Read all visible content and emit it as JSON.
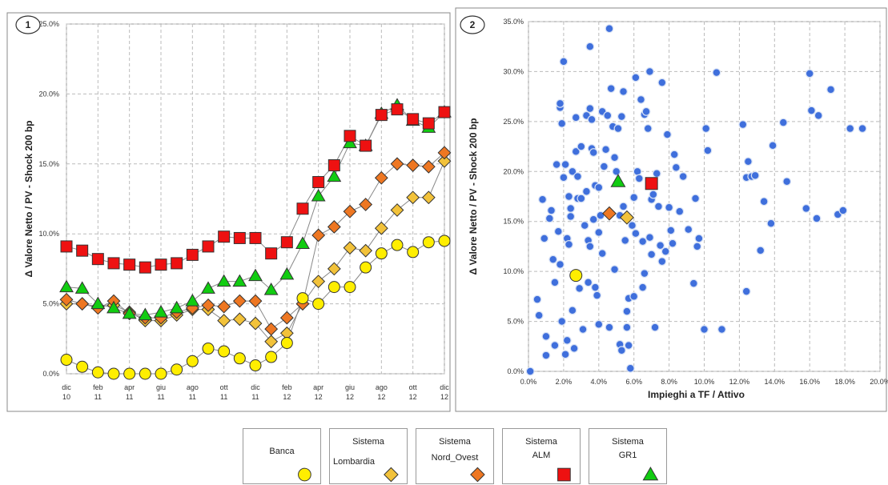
{
  "chart_data": [
    {
      "type": "line",
      "panel_number": "1",
      "ylabel": "Δ Valore Netto / PV - Shock 200 bp",
      "xlabel": "",
      "ylim": [
        0,
        25
      ],
      "y_ticks": [
        "0.0%",
        "5.0%",
        "10.0%",
        "15.0%",
        "20.0%",
        "25.0%"
      ],
      "x_tick_labels": [
        [
          "dic",
          "10"
        ],
        [
          "feb",
          "11"
        ],
        [
          "apr",
          "11"
        ],
        [
          "giu",
          "11"
        ],
        [
          "ago",
          "11"
        ],
        [
          "ott",
          "11"
        ],
        [
          "dic",
          "11"
        ],
        [
          "feb",
          "12"
        ],
        [
          "apr",
          "12"
        ],
        [
          "giu",
          "12"
        ],
        [
          "ago",
          "12"
        ],
        [
          "ott",
          "12"
        ],
        [
          "dic",
          "12"
        ]
      ],
      "categories": [
        "dic 10",
        "gen 11",
        "feb 11",
        "mar 11",
        "apr 11",
        "mag 11",
        "giu 11",
        "lug 11",
        "ago 11",
        "set 11",
        "ott 11",
        "nov 11",
        "dic 11",
        "gen 12",
        "feb 12",
        "mar 12",
        "apr 12",
        "mag 12",
        "giu 12",
        "lug 12",
        "ago 12",
        "set 12",
        "ott 12",
        "nov 12",
        "dic 12"
      ],
      "grid": true,
      "series": [
        {
          "key": "banca",
          "marker": "circle",
          "color": "#ffee00",
          "values": [
            1.0,
            0.5,
            0.1,
            0.0,
            0.0,
            0.0,
            0.0,
            0.3,
            0.9,
            1.8,
            1.6,
            1.1,
            0.6,
            1.2,
            2.2,
            5.4,
            5.0,
            6.2,
            6.2,
            7.6,
            8.6,
            9.2,
            8.7,
            9.4,
            9.5
          ]
        },
        {
          "key": "lombardia",
          "marker": "diamond",
          "color": "#f2c23a",
          "values": [
            5.0,
            5.0,
            4.8,
            4.9,
            4.4,
            3.8,
            3.8,
            4.2,
            4.6,
            4.6,
            3.8,
            3.9,
            3.6,
            2.3,
            2.9,
            5.0,
            6.6,
            7.5,
            9.0,
            8.8,
            10.4,
            11.7,
            12.6,
            12.6,
            15.2
          ]
        },
        {
          "key": "nord_ovest",
          "marker": "diamond",
          "color": "#ee7722",
          "values": [
            5.3,
            5.0,
            4.7,
            5.2,
            4.3,
            4.0,
            4.0,
            4.4,
            4.7,
            4.9,
            4.8,
            5.2,
            5.2,
            3.2,
            4.0,
            5.0,
            9.9,
            10.5,
            11.6,
            12.1,
            14.0,
            15.0,
            14.9,
            14.8,
            15.8
          ]
        },
        {
          "key": "alm",
          "marker": "square",
          "color": "#ee1111",
          "values": [
            9.1,
            8.8,
            8.2,
            7.9,
            7.8,
            7.6,
            7.8,
            7.9,
            8.5,
            9.1,
            9.8,
            9.7,
            9.7,
            8.6,
            9.4,
            11.8,
            13.7,
            14.9,
            17.0,
            16.3,
            18.5,
            18.9,
            18.2,
            17.9,
            18.7
          ]
        },
        {
          "key": "gr1",
          "marker": "triangle",
          "color": "#11cc11",
          "values": [
            6.2,
            6.1,
            5.0,
            4.7,
            4.3,
            4.2,
            4.4,
            4.7,
            5.2,
            6.1,
            6.6,
            6.6,
            7.0,
            6.0,
            7.1,
            9.3,
            12.7,
            14.1,
            16.5,
            16.3,
            18.6,
            19.2,
            18.1,
            17.6,
            18.7
          ]
        }
      ]
    },
    {
      "type": "scatter",
      "panel_number": "2",
      "xlabel": "Impieghi a TF / Attivo",
      "ylabel": "Δ Valore Netto / PV - Shock 200 bp",
      "xlim": [
        0,
        20
      ],
      "ylim": [
        0,
        35
      ],
      "x_ticks": [
        "0.0%",
        "2.0%",
        "4.0%",
        "6.0%",
        "8.0%",
        "10.0%",
        "12.0%",
        "14.0%",
        "16.0%",
        "18.0%",
        "20.0%"
      ],
      "y_ticks": [
        "0.0%",
        "5.0%",
        "10.0%",
        "15.0%",
        "20.0%",
        "25.0%",
        "30.0%",
        "35.0%"
      ],
      "grid": true,
      "point_color": "#3f6fdc",
      "points": [
        [
          0.1,
          0.0
        ],
        [
          0.5,
          7.2
        ],
        [
          0.6,
          5.6
        ],
        [
          0.8,
          17.2
        ],
        [
          0.9,
          13.3
        ],
        [
          1.0,
          3.5
        ],
        [
          1.0,
          1.6
        ],
        [
          1.2,
          15.3
        ],
        [
          1.3,
          16.1
        ],
        [
          1.4,
          11.2
        ],
        [
          1.5,
          2.6
        ],
        [
          1.5,
          8.9
        ],
        [
          1.6,
          20.7
        ],
        [
          1.7,
          14.0
        ],
        [
          1.8,
          26.4
        ],
        [
          1.8,
          26.8
        ],
        [
          1.8,
          10.7
        ],
        [
          1.9,
          5.0
        ],
        [
          1.9,
          24.8
        ],
        [
          2.0,
          31.0
        ],
        [
          2.0,
          19.4
        ],
        [
          2.1,
          20.7
        ],
        [
          2.1,
          1.7
        ],
        [
          2.2,
          3.1
        ],
        [
          2.2,
          13.3
        ],
        [
          2.3,
          17.5
        ],
        [
          2.3,
          12.7
        ],
        [
          2.4,
          15.5
        ],
        [
          2.4,
          16.3
        ],
        [
          2.5,
          20.0
        ],
        [
          2.5,
          6.1
        ],
        [
          2.6,
          2.3
        ],
        [
          2.7,
          22.0
        ],
        [
          2.7,
          25.4
        ],
        [
          2.8,
          17.3
        ],
        [
          2.8,
          19.5
        ],
        [
          2.9,
          8.3
        ],
        [
          3.0,
          22.5
        ],
        [
          3.0,
          17.3
        ],
        [
          3.1,
          4.2
        ],
        [
          3.2,
          14.6
        ],
        [
          3.3,
          25.6
        ],
        [
          3.3,
          18.0
        ],
        [
          3.4,
          13.1
        ],
        [
          3.4,
          8.9
        ],
        [
          3.5,
          32.5
        ],
        [
          3.5,
          26.3
        ],
        [
          3.5,
          12.5
        ],
        [
          3.6,
          25.2
        ],
        [
          3.6,
          22.3
        ],
        [
          3.7,
          21.9
        ],
        [
          3.7,
          15.2
        ],
        [
          3.8,
          18.6
        ],
        [
          3.8,
          8.4
        ],
        [
          3.9,
          7.6
        ],
        [
          4.0,
          18.4
        ],
        [
          4.0,
          13.9
        ],
        [
          4.0,
          4.7
        ],
        [
          4.1,
          15.6
        ],
        [
          4.2,
          26.0
        ],
        [
          4.2,
          11.8
        ],
        [
          4.3,
          20.5
        ],
        [
          4.4,
          22.2
        ],
        [
          4.5,
          25.6
        ],
        [
          4.6,
          34.3
        ],
        [
          4.6,
          4.4
        ],
        [
          4.7,
          28.3
        ],
        [
          4.8,
          24.5
        ],
        [
          4.9,
          21.4
        ],
        [
          4.9,
          10.2
        ],
        [
          5.0,
          20.0
        ],
        [
          5.1,
          24.3
        ],
        [
          5.2,
          15.6
        ],
        [
          5.2,
          2.7
        ],
        [
          5.3,
          2.1
        ],
        [
          5.3,
          25.5
        ],
        [
          5.4,
          28.0
        ],
        [
          5.4,
          16.5
        ],
        [
          5.5,
          13.1
        ],
        [
          5.6,
          4.4
        ],
        [
          5.6,
          6.0
        ],
        [
          5.7,
          7.3
        ],
        [
          5.7,
          2.6
        ],
        [
          5.8,
          0.3
        ],
        [
          5.9,
          14.6
        ],
        [
          6.0,
          17.4
        ],
        [
          6.0,
          7.5
        ],
        [
          6.1,
          13.8
        ],
        [
          6.1,
          29.4
        ],
        [
          6.2,
          20.0
        ],
        [
          6.3,
          19.3
        ],
        [
          6.4,
          27.2
        ],
        [
          6.5,
          8.4
        ],
        [
          6.5,
          13.0
        ],
        [
          6.6,
          9.8
        ],
        [
          6.6,
          25.7
        ],
        [
          6.7,
          26.0
        ],
        [
          6.8,
          24.3
        ],
        [
          6.9,
          30.0
        ],
        [
          6.9,
          13.4
        ],
        [
          7.0,
          17.2
        ],
        [
          7.0,
          11.7
        ],
        [
          7.1,
          17.7
        ],
        [
          7.2,
          4.4
        ],
        [
          7.3,
          19.8
        ],
        [
          7.4,
          16.5
        ],
        [
          7.5,
          12.6
        ],
        [
          7.6,
          11.0
        ],
        [
          7.6,
          28.9
        ],
        [
          7.8,
          12.0
        ],
        [
          7.9,
          23.7
        ],
        [
          8.0,
          16.4
        ],
        [
          8.1,
          14.1
        ],
        [
          8.2,
          12.8
        ],
        [
          8.3,
          21.7
        ],
        [
          8.4,
          20.4
        ],
        [
          8.6,
          16.0
        ],
        [
          8.8,
          19.5
        ],
        [
          9.1,
          14.2
        ],
        [
          9.4,
          8.8
        ],
        [
          9.5,
          17.3
        ],
        [
          9.6,
          12.5
        ],
        [
          9.7,
          13.3
        ],
        [
          10.0,
          4.2
        ],
        [
          10.1,
          24.3
        ],
        [
          10.2,
          22.1
        ],
        [
          10.7,
          29.9
        ],
        [
          11.0,
          4.2
        ],
        [
          12.2,
          24.7
        ],
        [
          12.4,
          19.4
        ],
        [
          12.4,
          8.0
        ],
        [
          12.5,
          21.0
        ],
        [
          12.7,
          19.5
        ],
        [
          12.9,
          19.6
        ],
        [
          13.2,
          12.1
        ],
        [
          13.4,
          17.0
        ],
        [
          13.8,
          14.8
        ],
        [
          13.9,
          22.6
        ],
        [
          14.5,
          24.9
        ],
        [
          14.7,
          19.0
        ],
        [
          15.8,
          16.3
        ],
        [
          16.0,
          29.8
        ],
        [
          16.1,
          26.1
        ],
        [
          16.4,
          15.3
        ],
        [
          16.5,
          25.6
        ],
        [
          17.2,
          28.2
        ],
        [
          17.6,
          15.7
        ],
        [
          17.9,
          16.1
        ],
        [
          18.3,
          24.3
        ],
        [
          19.0,
          24.3
        ]
      ],
      "highlights": [
        {
          "key": "banca",
          "marker": "circle",
          "color": "#ffee00",
          "x": 2.7,
          "y": 9.6
        },
        {
          "key": "lombardia",
          "marker": "diamond",
          "color": "#f2c23a",
          "x": 5.6,
          "y": 15.4
        },
        {
          "key": "nord_ovest",
          "marker": "diamond",
          "color": "#ee7722",
          "x": 4.6,
          "y": 15.8
        },
        {
          "key": "alm",
          "marker": "square",
          "color": "#ee1111",
          "x": 7.0,
          "y": 18.8
        },
        {
          "key": "gr1",
          "marker": "triangle",
          "color": "#11cc11",
          "x": 5.1,
          "y": 19.0
        }
      ]
    }
  ],
  "legend": [
    {
      "key": "banca",
      "line1": "",
      "line2": "Banca",
      "marker": "circle",
      "color": "#ffee00"
    },
    {
      "key": "lombardia",
      "line1": "Sistema",
      "line2": "Lombardia",
      "marker": "diamond",
      "color": "#f2c23a"
    },
    {
      "key": "nord_ovest",
      "line1": "Sistema",
      "line2": "Nord_Ovest",
      "marker": "diamond",
      "color": "#ee7722"
    },
    {
      "key": "alm",
      "line1": "Sistema",
      "line2": "ALM",
      "marker": "square",
      "color": "#ee1111"
    },
    {
      "key": "gr1",
      "line1": "Sistema",
      "line2": "GR1",
      "marker": "triangle",
      "color": "#11cc11"
    }
  ]
}
